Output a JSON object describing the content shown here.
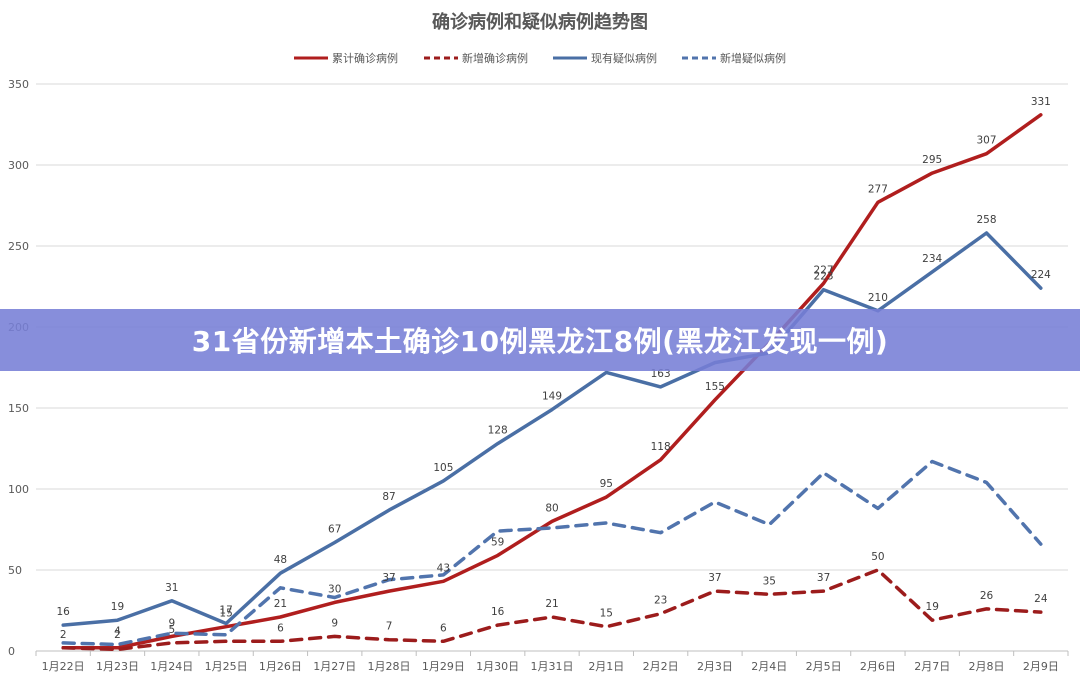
{
  "banner": {
    "headline": "31省份新增本土确诊10例黑龙江8例(黑龙江发现一例)"
  },
  "chart_data": {
    "type": "line",
    "title": "确诊病例和疑似病例趋势图",
    "xlabel": "",
    "ylabel": "",
    "ylim": [
      0,
      350
    ],
    "yticks": [
      0,
      50,
      100,
      150,
      200,
      250,
      300,
      350
    ],
    "grid": true,
    "legend_position": "top",
    "categories": [
      "1月22日",
      "1月23日",
      "1月24日",
      "1月25日",
      "1月26日",
      "1月27日",
      "1月28日",
      "1月29日",
      "1月30日",
      "1月31日",
      "2月1日",
      "2月2日",
      "2月3日",
      "2月4日",
      "2月5日",
      "2月6日",
      "2月7日",
      "2月8日",
      "2月9日"
    ],
    "series": [
      {
        "name": "累计确诊病例",
        "color": "#b01e1e",
        "dash": false,
        "values": [
          2,
          2,
          9,
          15,
          21,
          30,
          37,
          43,
          59,
          80,
          95,
          118,
          155,
          190,
          227,
          277,
          295,
          307,
          331
        ],
        "labels": [
          "2",
          "2",
          "9",
          "15",
          "21",
          "30",
          "37",
          "43",
          "59",
          "80",
          "95",
          "118",
          "155",
          "",
          "227",
          "277",
          "295",
          "307",
          "331"
        ]
      },
      {
        "name": "新增确诊病例",
        "color": "#9c1c1c",
        "dash": true,
        "values": [
          2,
          1,
          5,
          6,
          6,
          9,
          7,
          6,
          16,
          21,
          15,
          23,
          37,
          35,
          37,
          50,
          19,
          26,
          24
        ],
        "labels": [
          "",
          "",
          "5",
          "",
          "6",
          "9",
          "7",
          "6",
          "16",
          "21",
          "15",
          "23",
          "37",
          "35",
          "37",
          "50",
          "19",
          "26",
          "24"
        ]
      },
      {
        "name": "现有疑似病例",
        "color": "#4a6fa5",
        "dash": false,
        "values": [
          16,
          19,
          31,
          17,
          48,
          67,
          87,
          105,
          128,
          149,
          172,
          163,
          178,
          184,
          223,
          210,
          234,
          258,
          224
        ],
        "labels": [
          "16",
          "19",
          "31",
          "17",
          "48",
          "67",
          "87",
          "105",
          "128",
          "149",
          "",
          "163",
          "",
          "",
          "223",
          "210",
          "234",
          "258",
          "224"
        ]
      },
      {
        "name": "新增疑似病例",
        "color": "#5174ad",
        "dash": true,
        "values": [
          5,
          4,
          11,
          10,
          39,
          33,
          44,
          47,
          74,
          76,
          79,
          73,
          92,
          78,
          110,
          88,
          117,
          104,
          66
        ],
        "labels": [
          "",
          "4",
          "",
          "",
          "",
          "",
          "",
          "",
          "",
          "",
          "",
          "",
          "",
          "",
          "",
          "",
          "",
          "",
          ""
        ]
      }
    ]
  }
}
